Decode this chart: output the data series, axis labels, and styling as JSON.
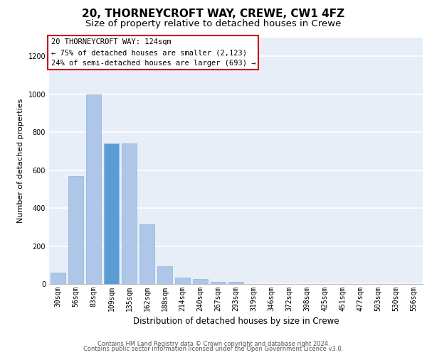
{
  "title_line1": "20, THORNEYCROFT WAY, CREWE, CW1 4FZ",
  "title_line2": "Size of property relative to detached houses in Crewe",
  "xlabel": "Distribution of detached houses by size in Crewe",
  "ylabel": "Number of detached properties",
  "footer_line1": "Contains HM Land Registry data © Crown copyright and database right 2024.",
  "footer_line2": "Contains public sector information licensed under the Open Government Licence v3.0.",
  "bar_labels": [
    "30sqm",
    "56sqm",
    "83sqm",
    "109sqm",
    "135sqm",
    "162sqm",
    "188sqm",
    "214sqm",
    "240sqm",
    "267sqm",
    "293sqm",
    "319sqm",
    "346sqm",
    "372sqm",
    "398sqm",
    "425sqm",
    "451sqm",
    "477sqm",
    "503sqm",
    "530sqm",
    "556sqm"
  ],
  "bar_values": [
    60,
    570,
    1000,
    740,
    740,
    315,
    95,
    35,
    25,
    13,
    13,
    0,
    0,
    0,
    0,
    0,
    0,
    0,
    0,
    0,
    0
  ],
  "bar_color_normal": "#aec6e8",
  "bar_color_highlight": "#5b9bd5",
  "highlight_index": 3,
  "ylim": [
    0,
    1300
  ],
  "yticks": [
    0,
    200,
    400,
    600,
    800,
    1000,
    1200
  ],
  "annotation_text": "20 THORNEYCROFT WAY: 124sqm\n← 75% of detached houses are smaller (2,123)\n24% of semi-detached houses are larger (693) →",
  "annotation_box_facecolor": "#ffffff",
  "annotation_box_edgecolor": "#cc0000",
  "background_color": "#e8eef8",
  "grid_color": "#ffffff",
  "title_fontsize": 11,
  "subtitle_fontsize": 9.5,
  "ylabel_fontsize": 8,
  "xlabel_fontsize": 8.5,
  "tick_fontsize": 7,
  "annot_fontsize": 7.5,
  "footer_fontsize": 6
}
